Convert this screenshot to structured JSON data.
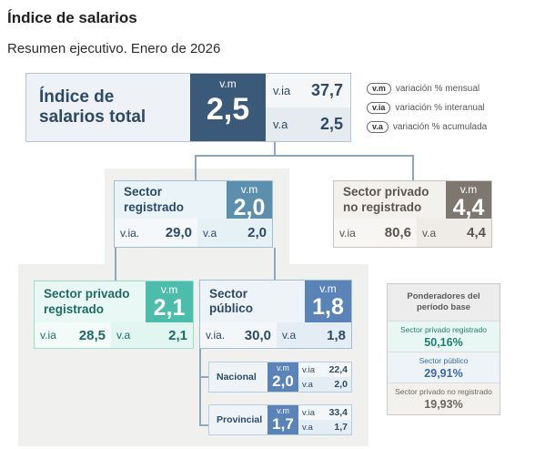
{
  "title": "Índice de salarios",
  "subtitle": "Resumen ejecutivo. Enero de 2026",
  "total": {
    "name_line1": "Índice de",
    "name_line2": "salarios total",
    "vm_label": "v.m",
    "vm_value": "2,5",
    "via_label": "v.ia",
    "via_value": "37,7",
    "va_label": "v.a",
    "va_value": "2,5"
  },
  "legend": [
    {
      "abbr": "v.m",
      "text": "variación % mensual"
    },
    {
      "abbr": "v.ia",
      "text": "variación % interanual"
    },
    {
      "abbr": "v.a",
      "text": "variación % acumulada"
    }
  ],
  "registrado": {
    "name_line1": "Sector",
    "name_line2": "registrado",
    "vm_label": "v.m",
    "vm_value": "2,0",
    "via_label": "v.ia.",
    "via_value": "29,0",
    "va_label": "v.a",
    "va_value": "2,0"
  },
  "no_registrado": {
    "name_line1": "Sector privado",
    "name_line2": "no registrado",
    "vm_label": "v.m",
    "vm_value": "4,4",
    "via_label": "v.ia",
    "via_value": "80,6",
    "va_label": "v.a",
    "va_value": "4,4"
  },
  "privado_registrado": {
    "name_line1": "Sector privado",
    "name_line2": "registrado",
    "vm_label": "v.m",
    "vm_value": "2,1",
    "via_label": "v.ia",
    "via_value": "28,5",
    "va_label": "v.a",
    "va_value": "2,1"
  },
  "publico": {
    "name_line1": "Sector",
    "name_line2": "público",
    "vm_label": "v.m",
    "vm_value": "1,8",
    "via_label": "v.ia.",
    "via_value": "30,0",
    "va_label": "v.a",
    "va_value": "1,8"
  },
  "nacional": {
    "name": "Nacional",
    "vm_label": "v.m",
    "vm_value": "2,0",
    "via_label": "v.ia",
    "via_value": "22,4",
    "va_label": "v.a",
    "va_value": "2,0"
  },
  "provincial": {
    "name": "Provincial",
    "vm_label": "v.m",
    "vm_value": "1,7",
    "via_label": "v.ia",
    "via_value": "33,4",
    "va_label": "v.a",
    "va_value": "1,7"
  },
  "weights": {
    "header_line1": "Ponderadores del",
    "header_line2": "período base",
    "items": [
      {
        "label": "Sector privado registrado",
        "value": "50,16%"
      },
      {
        "label": "Sector público",
        "value": "29,91%"
      },
      {
        "label": "Sector privado no registrado",
        "value": "19,93%"
      }
    ]
  },
  "colors": {
    "total_accent": "#3b5a7a",
    "registrado_accent": "#5c8fae",
    "no_registrado_accent": "#7d7770",
    "privado_registrado_accent": "#4bbdaa",
    "publico_accent": "#5a84b8"
  }
}
